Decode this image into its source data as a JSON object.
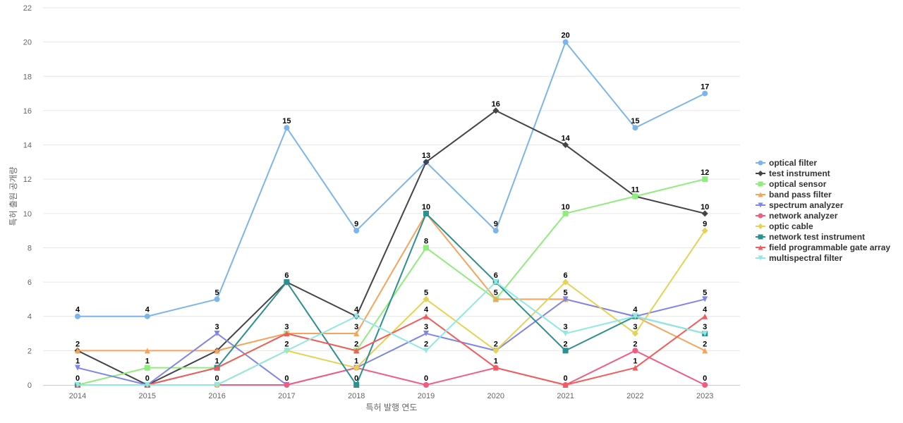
{
  "chart_data": {
    "type": "line",
    "title": "",
    "xlabel": "특허 발행 연도",
    "ylabel": "특허 출원 공개량",
    "x": [
      "2014",
      "2015",
      "2016",
      "2017",
      "2018",
      "2019",
      "2020",
      "2021",
      "2022",
      "2023"
    ],
    "ylim": [
      0,
      22
    ],
    "yticks": [
      0,
      2,
      4,
      6,
      8,
      10,
      12,
      14,
      16,
      18,
      20,
      22
    ],
    "grid": true,
    "legend_position": "right",
    "series": [
      {
        "name": "optical filter",
        "color": "#7cb5ec",
        "marker": "circle",
        "values": [
          4,
          4,
          5,
          15,
          9,
          13,
          9,
          20,
          15,
          17
        ]
      },
      {
        "name": "test instrument",
        "color": "#434348",
        "marker": "diamond",
        "values": [
          2,
          0,
          2,
          6,
          4,
          13,
          16,
          14,
          11,
          10
        ]
      },
      {
        "name": "optical sensor",
        "color": "#90ed7d",
        "marker": "square",
        "values": [
          0,
          1,
          1,
          3,
          2,
          8,
          5,
          10,
          11,
          12
        ]
      },
      {
        "name": "band pass filter",
        "color": "#f7a35c",
        "marker": "triangle",
        "values": [
          2,
          2,
          2,
          3,
          3,
          10,
          5,
          5,
          4,
          2
        ]
      },
      {
        "name": "spectrum analyzer",
        "color": "#8085e9",
        "marker": "triangle-down",
        "values": [
          1,
          0,
          3,
          0,
          1,
          3,
          2,
          5,
          4,
          5
        ]
      },
      {
        "name": "network analyzer",
        "color": "#f15c80",
        "marker": "circle",
        "values": [
          0,
          0,
          0,
          0,
          1,
          0,
          1,
          0,
          2,
          0
        ]
      },
      {
        "name": "optic cable",
        "color": "#e4d354",
        "marker": "diamond",
        "values": [
          0,
          0,
          0,
          2,
          1,
          5,
          2,
          6,
          3,
          9
        ]
      },
      {
        "name": "network test instrument",
        "color": "#2b908f",
        "marker": "square",
        "values": [
          0,
          0,
          1,
          6,
          0,
          10,
          6,
          2,
          4,
          3
        ]
      },
      {
        "name": "field programmable gate array",
        "color": "#f45b5b",
        "marker": "triangle",
        "values": [
          0,
          0,
          1,
          3,
          2,
          4,
          1,
          0,
          1,
          4
        ]
      },
      {
        "name": "multispectral filter",
        "color": "#91e8e1",
        "marker": "triangle-down",
        "values": [
          0,
          0,
          0,
          2,
          4,
          2,
          6,
          3,
          4,
          3
        ]
      }
    ],
    "data_labels": [
      {
        "series": 0,
        "values": [
          4,
          4,
          5,
          15,
          9,
          13,
          9,
          20,
          15,
          17
        ]
      },
      {
        "series": 1,
        "points": [
          [
            0,
            2
          ],
          [
            3,
            6
          ],
          [
            4,
            4
          ],
          [
            6,
            16
          ],
          [
            7,
            14
          ],
          [
            8,
            11
          ],
          [
            9,
            10
          ]
        ]
      },
      {
        "series": 2,
        "points": [
          [
            1,
            1
          ],
          [
            5,
            8
          ],
          [
            7,
            10
          ],
          [
            9,
            12
          ]
        ]
      },
      {
        "series": 3,
        "points": [
          [
            4,
            3
          ],
          [
            5,
            10
          ],
          [
            6,
            5
          ],
          [
            8,
            4
          ],
          [
            9,
            2
          ]
        ]
      },
      {
        "series": 4,
        "points": [
          [
            0,
            1
          ],
          [
            2,
            3
          ],
          [
            5,
            3
          ],
          [
            7,
            5
          ],
          [
            9,
            5
          ]
        ]
      },
      {
        "series": 5,
        "points": [
          [
            0,
            0
          ],
          [
            1,
            0
          ],
          [
            2,
            0
          ],
          [
            3,
            0
          ],
          [
            4,
            1
          ],
          [
            5,
            0
          ],
          [
            6,
            1
          ],
          [
            7,
            0
          ],
          [
            8,
            2
          ],
          [
            9,
            0
          ]
        ]
      },
      {
        "series": 6,
        "points": [
          [
            3,
            2
          ],
          [
            5,
            5
          ],
          [
            6,
            2
          ],
          [
            7,
            6
          ],
          [
            8,
            3
          ],
          [
            9,
            9
          ]
        ]
      },
      {
        "series": 7,
        "points": [
          [
            2,
            1
          ],
          [
            4,
            0
          ],
          [
            7,
            2
          ],
          [
            9,
            3
          ]
        ]
      },
      {
        "series": 8,
        "points": [
          [
            5,
            4
          ],
          [
            8,
            1
          ],
          [
            9,
            4
          ]
        ]
      },
      {
        "series": 9,
        "points": [
          [
            4,
            4
          ],
          [
            5,
            2
          ],
          [
            6,
            6
          ],
          [
            7,
            3
          ]
        ]
      },
      {
        "series": 4,
        "points": [
          [
            3,
            0
          ]
        ]
      },
      {
        "series": 8,
        "points": [
          [
            3,
            3
          ],
          [
            4,
            2
          ]
        ]
      },
      {
        "series": 0,
        "points": []
      },
      {
        "series": 1,
        "points": []
      }
    ]
  }
}
